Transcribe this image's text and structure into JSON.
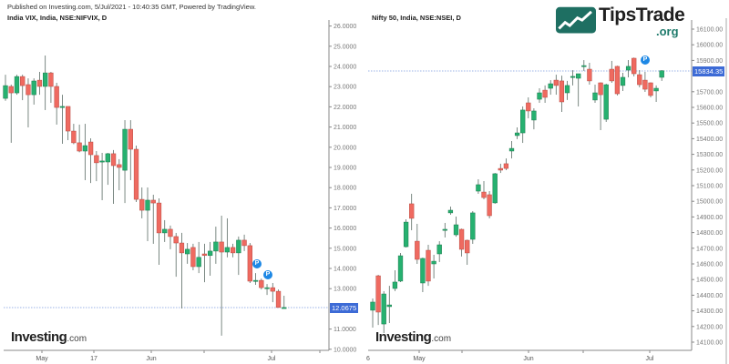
{
  "header": {
    "published": "Published on Investing.com, 5/Jul/2021 - 10:40:35 GMT, Powered by TradingView."
  },
  "watermark": {
    "brand": "TipsTrade",
    "domain": ".org",
    "brand_color": "#1e6f62"
  },
  "colors": {
    "up": "#26b170",
    "down": "#ef6a60",
    "last_price": "#3d6bd6",
    "marker": "#1e88e5"
  },
  "chart_data": [
    {
      "type": "candlestick",
      "title": "India VIX, India, NSE:NIFVIX, D",
      "ylim": [
        10,
        26
      ],
      "y_ticks": [
        "26.0000",
        "25.0000",
        "24.0000",
        "23.0000",
        "22.0000",
        "21.0000",
        "20.0000",
        "19.0000",
        "18.0000",
        "17.0000",
        "16.0000",
        "15.0000",
        "14.0000",
        "13.0000",
        "11.0000",
        "10.0000"
      ],
      "x_ticks": [
        "May",
        "17",
        "Jun",
        "Jul"
      ],
      "last_price": "12.0675",
      "markers": [
        "P",
        "P"
      ],
      "source_logo": {
        "name": "Investing",
        "suffix": ".com"
      },
      "candles": [
        [
          22.42,
          23.59,
          22.3,
          23.05
        ],
        [
          23.01,
          23.1,
          20.22,
          22.69
        ],
        [
          22.69,
          23.59,
          22.6,
          23.5
        ],
        [
          23.5,
          23.59,
          22.33,
          23.05
        ],
        [
          23.1,
          23.41,
          20.98,
          22.6
        ],
        [
          22.6,
          23.41,
          22.11,
          23.28
        ],
        [
          23.32,
          23.73,
          22.6,
          23.01
        ],
        [
          23.01,
          24.54,
          21.84,
          23.68
        ],
        [
          23.68,
          23.73,
          22.2,
          23.01
        ],
        [
          23.01,
          23.19,
          21.12,
          21.97
        ],
        [
          21.97,
          22.6,
          20.17,
          22.02
        ],
        [
          22.02,
          22.02,
          20.35,
          20.8
        ],
        [
          20.8,
          21.16,
          20.15,
          20.22
        ],
        [
          20.22,
          21.12,
          19.75,
          19.81
        ],
        [
          19.81,
          21.16,
          18.37,
          20.08
        ],
        [
          20.26,
          20.44,
          18.23,
          19.63
        ],
        [
          19.59,
          19.81,
          18.32,
          19.23
        ],
        [
          19.27,
          19.72,
          17.38,
          19.32
        ],
        [
          19.27,
          19.72,
          18.14,
          19.68
        ],
        [
          19.68,
          19.86,
          17.2,
          19.09
        ],
        [
          19.14,
          19.41,
          17.87,
          19.0
        ],
        [
          18.86,
          21.34,
          17.24,
          20.89
        ],
        [
          20.89,
          21.34,
          18.37,
          19.9
        ],
        [
          19.9,
          20.08,
          17.29,
          17.42
        ],
        [
          17.42,
          18.01,
          16.48,
          16.88
        ],
        [
          16.88,
          18.01,
          15.35,
          17.38
        ],
        [
          17.38,
          17.65,
          15.22,
          17.24
        ],
        [
          17.24,
          17.47,
          14.18,
          15.76
        ],
        [
          15.76,
          16.39,
          15.31,
          15.94
        ],
        [
          15.94,
          16.12,
          14.95,
          15.58
        ],
        [
          15.58,
          15.76,
          13.59,
          15.26
        ],
        [
          15.26,
          15.76,
          12.02,
          14.77
        ],
        [
          14.72,
          15.26,
          14.23,
          14.95
        ],
        [
          15.04,
          15.22,
          13.91,
          14.09
        ],
        [
          14.09,
          15.31,
          13.77,
          14.55
        ],
        [
          14.72,
          15.22,
          13.32,
          14.64
        ],
        [
          14.64,
          15.31,
          13.64,
          14.86
        ],
        [
          14.86,
          16.07,
          14.23,
          15.31
        ],
        [
          15.31,
          16.61,
          10.67,
          14.81
        ],
        [
          14.81,
          16.48,
          14.55,
          15.04
        ],
        [
          15.04,
          15.22,
          14.55,
          14.77
        ],
        [
          14.77,
          15.58,
          13.68,
          15.4
        ],
        [
          15.4,
          15.67,
          14.86,
          15.13
        ],
        [
          15.13,
          15.26,
          13.28,
          13.37
        ],
        [
          13.37,
          13.77,
          13.19,
          13.41
        ],
        [
          13.41,
          13.5,
          12.96,
          13.05
        ],
        [
          13.01,
          13.23,
          12.69,
          13.05
        ],
        [
          13.05,
          13.28,
          12.33,
          12.87
        ],
        [
          12.87,
          12.96,
          12.06,
          12.07
        ],
        [
          12.0675,
          12.65,
          12.02,
          12.0675
        ]
      ]
    },
    {
      "type": "candlestick",
      "title": "Nifty 50, India, NSE:NSEI, D",
      "ylim": [
        14100,
        16100
      ],
      "y_ticks": [
        "16100.00",
        "16000.00",
        "15900.00",
        "15700.00",
        "15600.00",
        "15500.00",
        "15400.00",
        "15300.00",
        "15200.00",
        "15100.00",
        "15000.00",
        "14900.00",
        "14800.00",
        "14700.00",
        "14600.00",
        "14500.00",
        "14400.00",
        "14300.00",
        "14200.00",
        "14100.00"
      ],
      "x_ticks": [
        "6",
        "May",
        "Jun",
        "Jul"
      ],
      "last_price": "15834.35",
      "markers": [
        "P"
      ],
      "source_logo": {
        "name": "Investing",
        "suffix": ".com"
      },
      "candles": [
        [
          14304,
          14379,
          14193,
          14356
        ],
        [
          14524,
          14530,
          14210,
          14292
        ],
        [
          14216,
          14426,
          14158,
          14408
        ],
        [
          14327,
          14460,
          14222,
          14338
        ],
        [
          14443,
          14559,
          14426,
          14484
        ],
        [
          14490,
          14670,
          14484,
          14652
        ],
        [
          14710,
          14885,
          14705,
          14867
        ],
        [
          14984,
          15048,
          14815,
          14891
        ],
        [
          14745,
          14856,
          14600,
          14629
        ],
        [
          14478,
          14640,
          14420,
          14635
        ],
        [
          14687,
          14722,
          14460,
          14490
        ],
        [
          14600,
          14658,
          14507,
          14617
        ],
        [
          14664,
          14745,
          14612,
          14722
        ],
        [
          14815,
          14862,
          14769,
          14821
        ],
        [
          14926,
          14966,
          14914,
          14943
        ],
        [
          14786,
          14902,
          14774,
          14850
        ],
        [
          14821,
          14825,
          14647,
          14693
        ],
        [
          14751,
          14755,
          14594,
          14670
        ],
        [
          14757,
          14937,
          14728,
          14926
        ],
        [
          15065,
          15141,
          15048,
          15106
        ],
        [
          15059,
          15129,
          15013,
          15024
        ],
        [
          15042,
          15065,
          14891,
          14908
        ],
        [
          14990,
          15181,
          14984,
          15176
        ],
        [
          15210,
          15240,
          15181,
          15199
        ],
        [
          15240,
          15274,
          15199,
          15210
        ],
        [
          15321,
          15385,
          15274,
          15338
        ],
        [
          15420,
          15472,
          15397,
          15437
        ],
        [
          15437,
          15606,
          15373,
          15583
        ],
        [
          15629,
          15664,
          15530,
          15577
        ],
        [
          15519,
          15594,
          15460,
          15577
        ],
        [
          15652,
          15722,
          15629,
          15693
        ],
        [
          15710,
          15740,
          15629,
          15664
        ],
        [
          15722,
          15774,
          15681,
          15751
        ],
        [
          15774,
          15809,
          15681,
          15740
        ],
        [
          15769,
          15803,
          15571,
          15635
        ],
        [
          15693,
          15769,
          15647,
          15740
        ],
        [
          15798,
          15838,
          15740,
          15798
        ],
        [
          15786,
          15815,
          15606,
          15815
        ],
        [
          15867,
          15902,
          15833,
          15867
        ],
        [
          15844,
          15885,
          15745,
          15769
        ],
        [
          15647,
          15745,
          15629,
          15693
        ],
        [
          15757,
          15760,
          15455,
          15681
        ],
        [
          15524,
          15751,
          15507,
          15745
        ],
        [
          15844,
          15897,
          15757,
          15769
        ],
        [
          15862,
          15866,
          15676,
          15687
        ],
        [
          15740,
          15821,
          15705,
          15792
        ],
        [
          15838,
          15902,
          15792,
          15862
        ],
        [
          15914,
          15918,
          15798,
          15815
        ],
        [
          15809,
          15838,
          15728,
          15745
        ],
        [
          15774,
          15827,
          15699,
          15716
        ],
        [
          15757,
          15760,
          15664,
          15676
        ],
        [
          15705,
          15740,
          15635,
          15722
        ],
        [
          15792,
          15838,
          15769,
          15834.35
        ]
      ]
    }
  ]
}
